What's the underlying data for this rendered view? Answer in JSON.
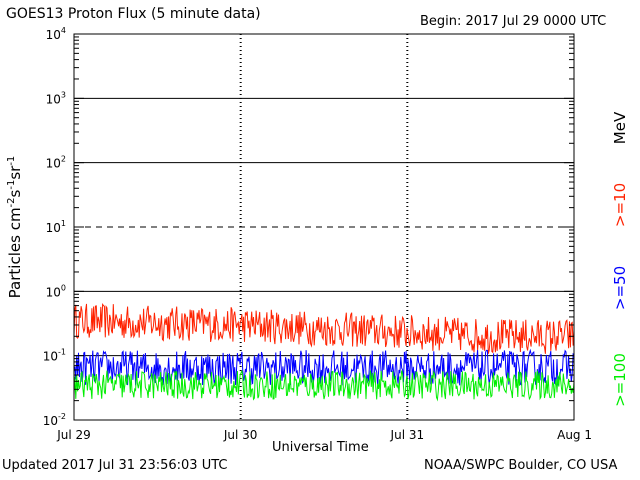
{
  "header": {
    "title": "GOES13 Proton Flux (5 minute data)",
    "begin": "Begin: 2017 Jul 29 0000 UTC"
  },
  "footer": {
    "updated": "Updated 2017 Jul 31 23:56:03 UTC",
    "credit": "NOAA/SWPC Boulder, CO USA"
  },
  "chart_data": {
    "type": "line",
    "title": "GOES13 Proton Flux (5 minute data)",
    "xlabel": "Universal Time",
    "ylabel": "Particles cm-2s-1sr-1",
    "y_scale": "log",
    "ylim": [
      0.01,
      10000
    ],
    "y_ticks": [
      {
        "base": "10",
        "exp": "4"
      },
      {
        "base": "10",
        "exp": "3"
      },
      {
        "base": "10",
        "exp": "2"
      },
      {
        "base": "10",
        "exp": "1"
      },
      {
        "base": "10",
        "exp": "0"
      },
      {
        "base": "10",
        "exp": "-1"
      },
      {
        "base": "10",
        "exp": "-2"
      }
    ],
    "x_ticks": [
      "Jul 29",
      "Jul 30",
      "Jul 31",
      "Aug 1"
    ],
    "unit_label": "MeV",
    "threshold_lines": [
      {
        "value": 1000,
        "style": "solid"
      },
      {
        "value": 100,
        "style": "solid"
      },
      {
        "value": 10,
        "style": "dashed"
      },
      {
        "value": 1,
        "style": "solid"
      },
      {
        "value": 0.1,
        "style": "solid"
      }
    ],
    "series": [
      {
        "name": ">=10",
        "color": "#ff2200",
        "x": [
          0.0,
          0.5,
          1.0,
          1.5,
          2.0,
          2.5,
          3.0
        ],
        "values": [
          0.35,
          0.32,
          0.3,
          0.26,
          0.23,
          0.2,
          0.2
        ]
      },
      {
        "name": ">=50",
        "color": "#0000ff",
        "x": [
          0.0,
          0.5,
          1.0,
          1.5,
          2.0,
          2.5,
          3.0
        ],
        "values": [
          0.065,
          0.065,
          0.065,
          0.065,
          0.065,
          0.065,
          0.065
        ]
      },
      {
        "name": ">=100",
        "color": "#00ee00",
        "x": [
          0.0,
          0.5,
          1.0,
          1.5,
          2.0,
          2.5,
          3.0
        ],
        "values": [
          0.035,
          0.035,
          0.035,
          0.035,
          0.035,
          0.035,
          0.035
        ]
      }
    ]
  }
}
